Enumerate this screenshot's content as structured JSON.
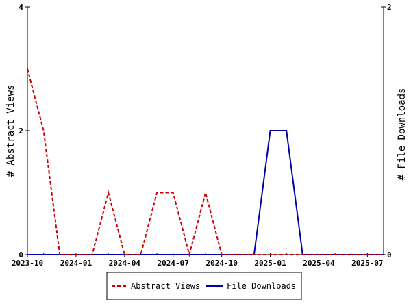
{
  "chart_data": {
    "type": "line",
    "x": [
      "2023-10",
      "2023-11",
      "2023-12",
      "2024-01",
      "2024-02",
      "2024-03",
      "2024-04",
      "2024-05",
      "2024-06",
      "2024-07",
      "2024-08",
      "2024-09",
      "2024-10",
      "2024-11",
      "2024-12",
      "2025-01",
      "2025-02",
      "2025-03",
      "2025-04",
      "2025-05",
      "2025-06",
      "2025-07",
      "2025-08"
    ],
    "x_ticks": [
      "2023-10",
      "2024-01",
      "2024-04",
      "2024-07",
      "2024-10",
      "2025-01",
      "2025-04",
      "2025-07"
    ],
    "series": [
      {
        "name": "Abstract Views",
        "axis": "left",
        "color": "#cc0000",
        "style": "dashed",
        "values": [
          3,
          2,
          0,
          0,
          0,
          1,
          0,
          0,
          1,
          1,
          0,
          1,
          0,
          0,
          0,
          0,
          0,
          0,
          0,
          0,
          0,
          0,
          0
        ]
      },
      {
        "name": "File Downloads",
        "axis": "right",
        "color": "#0000aa",
        "style": "solid",
        "values": [
          0,
          0,
          0,
          0,
          0,
          0,
          0,
          0,
          0,
          0,
          0,
          0,
          0,
          0,
          0,
          1,
          1,
          0,
          0,
          0,
          0,
          0,
          0
        ]
      }
    ],
    "ylabel_left": "# Abstract Views",
    "ylabel_right": "# File Downloads",
    "ylim_left": [
      0,
      4
    ],
    "ylim_right": [
      0,
      2
    ],
    "yticks_left": [
      "0",
      "2",
      "4"
    ],
    "yticks_right": [
      "0",
      "2"
    ],
    "grid": false,
    "legend_position": "bottom"
  }
}
